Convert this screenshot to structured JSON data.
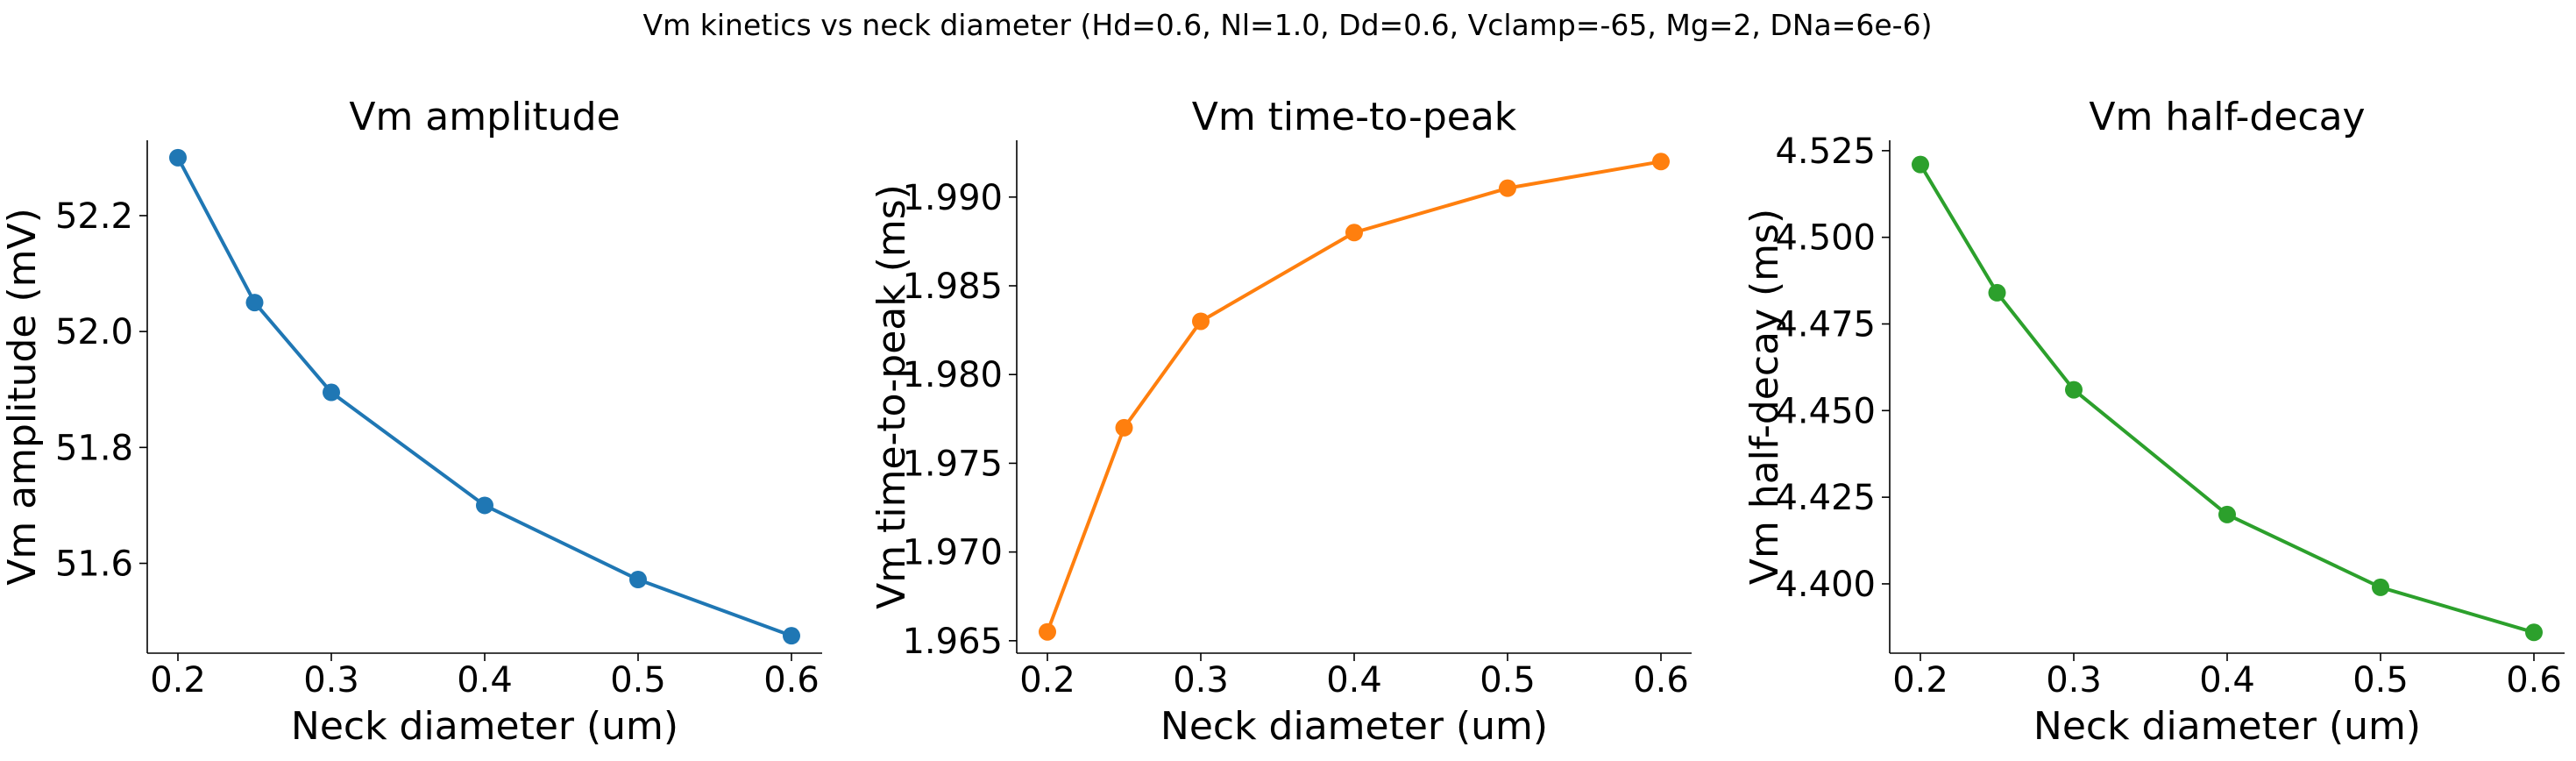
{
  "figure": {
    "suptitle": "Vm kinetics vs neck diameter (Hd=0.6, Nl=1.0, Dd=0.6, Vclamp=-65, Mg=2, DNa=6e-6)"
  },
  "chart_data": [
    {
      "type": "line",
      "title": "Vm amplitude",
      "xlabel": "Neck diameter (um)",
      "ylabel": "Vm amplitude (mV)",
      "x": [
        0.2,
        0.25,
        0.3,
        0.4,
        0.5,
        0.6
      ],
      "series": [
        {
          "values": [
            52.3,
            52.05,
            51.895,
            51.7,
            51.572,
            51.475
          ],
          "color": "#1f77b4"
        }
      ],
      "xlim": [
        0.18,
        0.62
      ],
      "ylim": [
        51.445,
        52.33
      ],
      "xticks": [
        0.2,
        0.3,
        0.4,
        0.5,
        0.6
      ],
      "xtick_labels": [
        "0.2",
        "0.3",
        "0.4",
        "0.5",
        "0.6"
      ],
      "yticks": [
        51.6,
        51.8,
        52.0,
        52.2
      ],
      "ytick_labels": [
        "51.6",
        "51.8",
        "52.0",
        "52.2"
      ],
      "marker": "circle",
      "grid": false
    },
    {
      "type": "line",
      "title": "Vm time-to-peak",
      "xlabel": "Neck diameter (um)",
      "ylabel": "Vm time-to-peak (ms)",
      "x": [
        0.2,
        0.25,
        0.3,
        0.4,
        0.5,
        0.6
      ],
      "series": [
        {
          "values": [
            1.9655,
            1.977,
            1.983,
            1.988,
            1.9905,
            1.992
          ],
          "color": "#ff7f0e"
        }
      ],
      "xlim": [
        0.18,
        0.62
      ],
      "ylim": [
        1.9643,
        1.9932
      ],
      "xticks": [
        0.2,
        0.3,
        0.4,
        0.5,
        0.6
      ],
      "xtick_labels": [
        "0.2",
        "0.3",
        "0.4",
        "0.5",
        "0.6"
      ],
      "yticks": [
        1.965,
        1.97,
        1.975,
        1.98,
        1.985,
        1.99
      ],
      "ytick_labels": [
        "1.965",
        "1.970",
        "1.975",
        "1.980",
        "1.985",
        "1.990"
      ],
      "marker": "circle",
      "grid": false
    },
    {
      "type": "line",
      "title": "Vm half-decay",
      "xlabel": "Neck diameter (um)",
      "ylabel": "Vm half-decay (ms)",
      "x": [
        0.2,
        0.25,
        0.3,
        0.4,
        0.5,
        0.6
      ],
      "series": [
        {
          "values": [
            4.521,
            4.484,
            4.456,
            4.42,
            4.399,
            4.386
          ],
          "color": "#2ca02c"
        }
      ],
      "xlim": [
        0.18,
        0.62
      ],
      "ylim": [
        4.38,
        4.528
      ],
      "xticks": [
        0.2,
        0.3,
        0.4,
        0.5,
        0.6
      ],
      "xtick_labels": [
        "0.2",
        "0.3",
        "0.4",
        "0.5",
        "0.6"
      ],
      "yticks": [
        4.4,
        4.425,
        4.45,
        4.475,
        4.5,
        4.525
      ],
      "ytick_labels": [
        "4.400",
        "4.425",
        "4.450",
        "4.475",
        "4.500",
        "4.525"
      ],
      "marker": "circle",
      "grid": false
    }
  ]
}
